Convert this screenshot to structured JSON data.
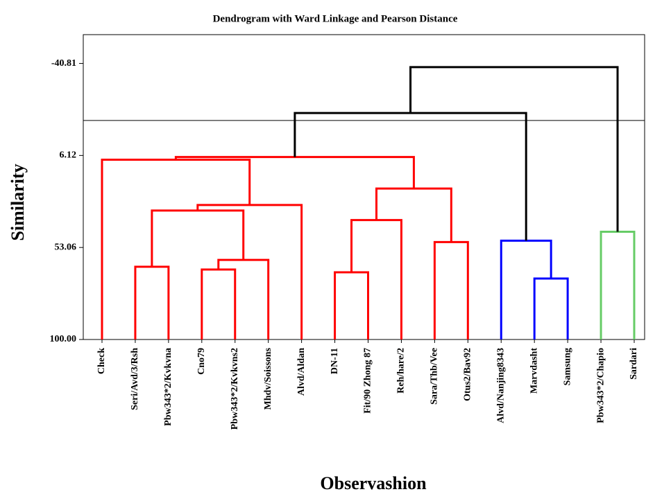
{
  "chart_data": {
    "type": "dendrogram",
    "title": "Dendrogram with Ward Linkage and Pearson Distance",
    "ylabel": "Similarity",
    "xlabel": "Observashion",
    "ylim": [
      100,
      -55.5
    ],
    "yticks": [
      {
        "value": 100,
        "label": "100.00"
      },
      53.06,
      6.12,
      -40.81
    ],
    "cut_line": -11.7,
    "tree": {
      "height": -38.95,
      "color": "#000000",
      "children": [
        {
          "height": -15.5,
          "color": "#000000",
          "children": [
            {
              "height": 6.9,
              "color": "#ff0000",
              "children": [
                {
                  "height": 8.3,
                  "color": "#ff0000",
                  "children": [
                    {
                      "label": "Check"
                    },
                    {
                      "height": 31.4,
                      "color": "#ff0000",
                      "children": [
                        {
                          "height": 34.2,
                          "color": "#ff0000",
                          "children": [
                            {
                              "height": 62.9,
                              "color": "#ff0000",
                              "children": [
                                {
                                  "label": "Seri/Avd/3/Rsh"
                                },
                                {
                                  "label": "Pbw343*2/Kvkvna"
                                }
                              ]
                            },
                            {
                              "height": 59.4,
                              "color": "#ff0000",
                              "children": [
                                {
                                  "height": 64.3,
                                  "color": "#ff0000",
                                  "children": [
                                    {
                                      "label": "Cno79"
                                    },
                                    {
                                      "label": "Pbw343*2/Kvkvns2"
                                    }
                                  ]
                                },
                                {
                                  "label": "Mhdv/Soissons"
                                }
                              ]
                            }
                          ]
                        },
                        {
                          "label": "Alvd/Aldan"
                        }
                      ]
                    }
                  ]
                },
                {
                  "height": 23.0,
                  "color": "#ff0000",
                  "children": [
                    {
                      "height": 39.1,
                      "color": "#ff0000",
                      "children": [
                        {
                          "height": 65.7,
                          "color": "#ff0000",
                          "children": [
                            {
                              "label": "DN-11"
                            },
                            {
                              "label": "Fit/90 Zhong 87"
                            }
                          ]
                        },
                        {
                          "label": "Reh/hare/2"
                        }
                      ]
                    },
                    {
                      "height": 50.3,
                      "color": "#ff0000",
                      "children": [
                        {
                          "label": "Sara/Thb/Vee"
                        },
                        {
                          "label": "Otus2/Bav92"
                        }
                      ]
                    }
                  ]
                }
              ]
            },
            {
              "height": 49.6,
              "color": "#0000ff",
              "children": [
                {
                  "label": "Alvd/Nanjing8343"
                },
                {
                  "height": 68.9,
                  "color": "#0000ff",
                  "children": [
                    {
                      "label": "Marvdasht"
                    },
                    {
                      "label": "Samsung"
                    }
                  ]
                }
              ]
            }
          ]
        },
        {
          "height": 45.05,
          "color": "#66cc66",
          "children": [
            {
              "label": "Pbw343*2/Chapio"
            },
            {
              "label": "Sardari"
            }
          ]
        }
      ]
    }
  }
}
